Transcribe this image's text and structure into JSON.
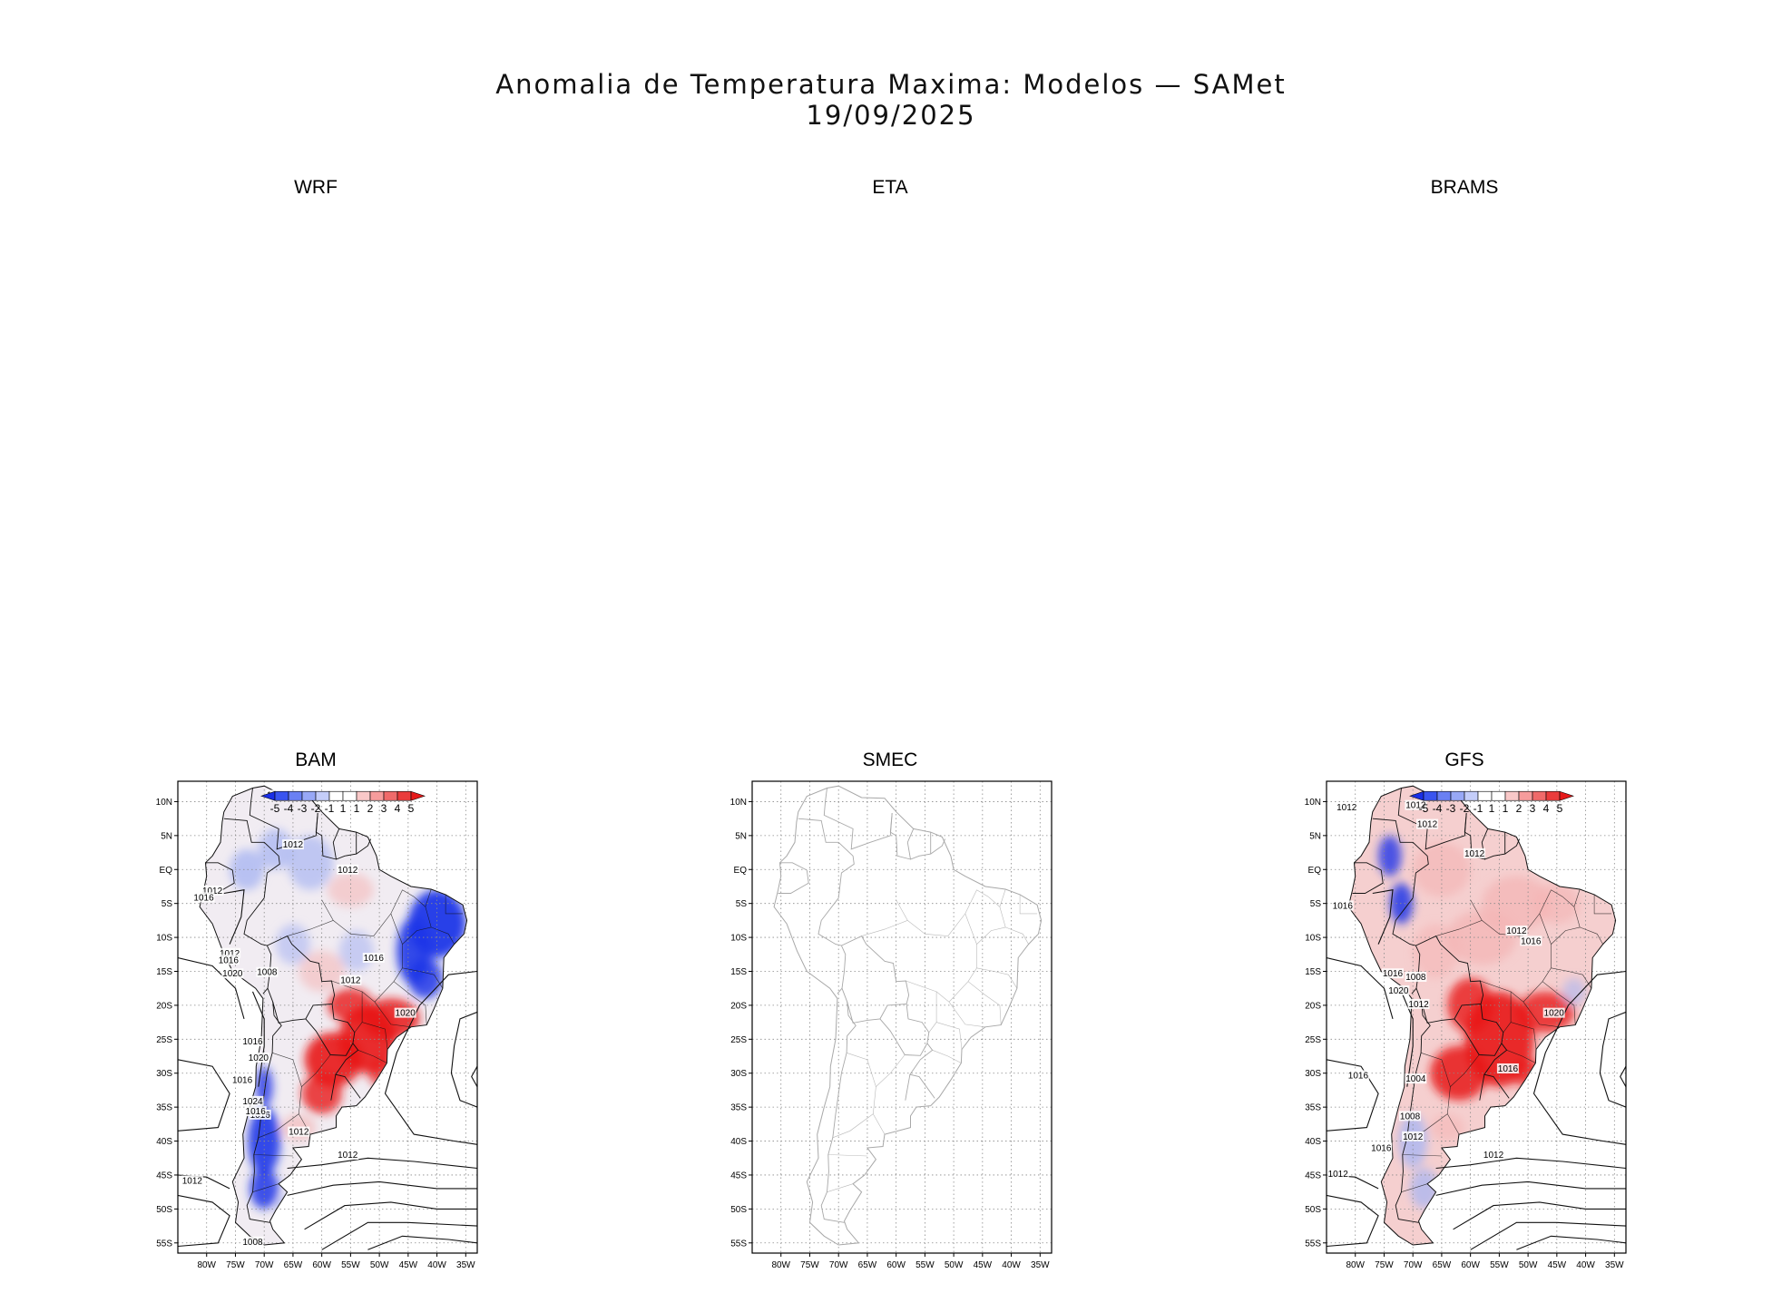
{
  "figure": {
    "title": "Anomalia de Temperatura Maxima: Modelos — SAMet",
    "date": "19/09/2025"
  },
  "panels": [
    {
      "id": "wrf",
      "label": "WRF",
      "has_map": false
    },
    {
      "id": "eta",
      "label": "ETA",
      "has_map": false
    },
    {
      "id": "brams",
      "label": "BRAMS",
      "has_map": false
    },
    {
      "id": "bam",
      "label": "BAM",
      "has_map": true,
      "has_data": true,
      "isobar_labels": [
        "1012",
        "1012",
        "1012",
        "1012",
        "1016",
        "1012",
        "1016",
        "1020",
        "1008",
        "1016",
        "1012",
        "1020",
        "1016",
        "1020",
        "1016",
        "1016",
        "1024",
        "1016",
        "1012",
        "1012",
        "1012",
        "1008"
      ]
    },
    {
      "id": "smec",
      "label": "SMEC",
      "has_map": true,
      "has_data": false,
      "isobar_labels": []
    },
    {
      "id": "gfs",
      "label": "GFS",
      "has_map": true,
      "has_data": true,
      "isobar_labels": [
        "1012",
        "1012",
        "1012",
        "1012",
        "1016",
        "1012",
        "1016",
        "1020",
        "1008",
        "1016",
        "1012",
        "1020",
        "1016",
        "1004",
        "1016",
        "1008",
        "1012",
        "1016",
        "1012",
        "1012"
      ]
    }
  ],
  "axes": {
    "lat_ticks": [
      "10N",
      "5N",
      "EQ",
      "5S",
      "10S",
      "15S",
      "20S",
      "25S",
      "30S",
      "35S",
      "40S",
      "45S",
      "50S",
      "55S"
    ],
    "lon_ticks": [
      "80W",
      "75W",
      "70W",
      "65W",
      "60W",
      "55W",
      "50W",
      "45W",
      "40W",
      "35W"
    ]
  },
  "colorbar": {
    "labels": [
      "-5",
      "-4",
      "-3",
      "-2",
      "-1",
      "1",
      "1",
      "2",
      "3",
      "4",
      "5"
    ],
    "colors": [
      "#1a2ee6",
      "#3a54ef",
      "#6a80f3",
      "#98a8f6",
      "#c4cdf9",
      "#ffffff",
      "#ffffff",
      "#f9c8c8",
      "#f69c9c",
      "#f06a6a",
      "#ea3c3c",
      "#e61a1a"
    ]
  },
  "style": {
    "anomaly_blue": "#1f36e8",
    "anomaly_light_blue": "#aab6f2",
    "anomaly_light_red": "#f4b3b3",
    "anomaly_red": "#e81818",
    "smec_outline": "#a8a8a8",
    "grid": "#8a8a8a"
  }
}
